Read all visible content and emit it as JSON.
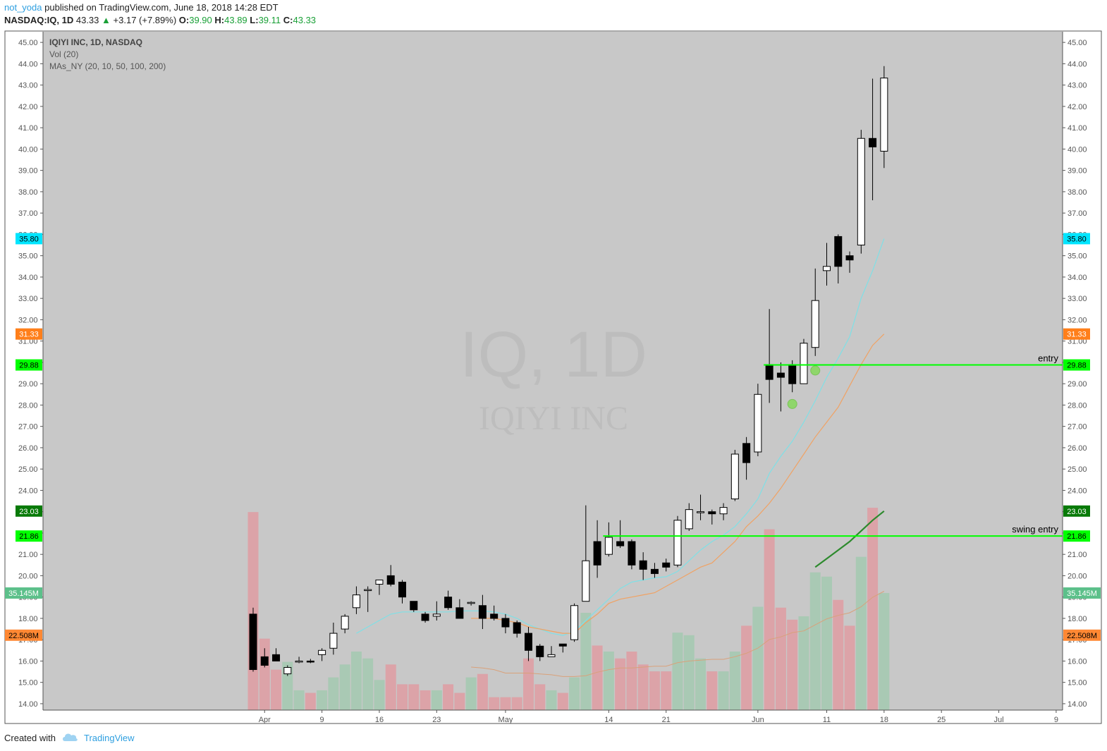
{
  "header": {
    "user": "not_yoda",
    "published_text": "published on TradingView.com, June 18, 2018 14:28 EDT",
    "symbol": "NASDAQ:IQ, 1D",
    "last": "43.33",
    "change": "+3.17 (+7.89%)",
    "o_label": "O:",
    "o_val": "39.90",
    "h_label": "H:",
    "h_val": "43.89",
    "l_label": "L:",
    "l_val": "39.11",
    "c_label": "C:",
    "c_val": "43.33"
  },
  "legend": {
    "line1": "IQIYI INC, 1D, NASDAQ",
    "line2": "Vol (20)",
    "line3": "MAs_NY (20, 10, 50, 100, 200)"
  },
  "watermark": {
    "big": "IQ, 1D",
    "small": "IQIYI INC"
  },
  "footer": {
    "created": "Created with",
    "brand": "TradingView"
  },
  "colors": {
    "bg": "#c8c8c8",
    "up": "#ffffff",
    "down": "#000000",
    "vol_up": "#a9c9b4",
    "vol_down": "#dca3a8",
    "ma10": "#7fe0e6",
    "ma20": "#f0a264",
    "ma50": "#2d8a2d",
    "hline": "#00ff00"
  },
  "chart_data": {
    "type": "candlestick",
    "y_range": [
      13.7,
      45.5
    ],
    "y_ticks": [
      "45.00",
      "44.00",
      "43.00",
      "42.00",
      "41.00",
      "40.00",
      "39.00",
      "38.00",
      "37.00",
      "36.00",
      "35.00",
      "34.00",
      "33.00",
      "32.00",
      "31.00",
      "30.00",
      "29.00",
      "28.00",
      "27.00",
      "26.00",
      "25.00",
      "24.00",
      "23.00",
      "22.00",
      "21.00",
      "20.00",
      "19.00",
      "18.00",
      "17.00",
      "16.00",
      "15.00",
      "14.00"
    ],
    "x_ticks": [
      {
        "label": "Apr",
        "slot": 1
      },
      {
        "label": "9",
        "slot": 6
      },
      {
        "label": "16",
        "slot": 11
      },
      {
        "label": "23",
        "slot": 16
      },
      {
        "label": "May",
        "slot": 22
      },
      {
        "label": "14",
        "slot": 31
      },
      {
        "label": "21",
        "slot": 36
      },
      {
        "label": "Jun",
        "slot": 44
      },
      {
        "label": "11",
        "slot": 50
      },
      {
        "label": "18",
        "slot": 55
      },
      {
        "label": "25",
        "slot": 60
      },
      {
        "label": "Jul",
        "slot": 65
      },
      {
        "label": "9",
        "slot": 70
      }
    ],
    "candles": [
      {
        "o": 18.2,
        "h": 18.5,
        "l": 15.5,
        "c": 15.6,
        "v": 23.0
      },
      {
        "o": 16.2,
        "h": 16.6,
        "l": 15.7,
        "c": 15.8,
        "v": 8.3
      },
      {
        "o": 16.3,
        "h": 16.6,
        "l": 16.0,
        "c": 16.0,
        "v": 4.7
      },
      {
        "o": 15.4,
        "h": 15.8,
        "l": 15.3,
        "c": 15.7,
        "v": 5.6
      },
      {
        "o": 16.0,
        "h": 16.2,
        "l": 15.9,
        "c": 16.0,
        "v": 2.3
      },
      {
        "o": 16.0,
        "h": 16.1,
        "l": 15.9,
        "c": 15.95,
        "v": 2.0
      },
      {
        "o": 16.3,
        "h": 16.6,
        "l": 16.0,
        "c": 16.5,
        "v": 2.3
      },
      {
        "o": 16.6,
        "h": 17.8,
        "l": 16.3,
        "c": 17.3,
        "v": 3.8
      },
      {
        "o": 17.5,
        "h": 18.2,
        "l": 17.3,
        "c": 18.1,
        "v": 5.3
      },
      {
        "o": 18.5,
        "h": 19.5,
        "l": 18.2,
        "c": 19.1,
        "v": 6.8
      },
      {
        "o": 19.3,
        "h": 19.5,
        "l": 18.3,
        "c": 19.35,
        "v": 6.0
      },
      {
        "o": 19.6,
        "h": 19.8,
        "l": 19.1,
        "c": 19.8,
        "v": 3.5
      },
      {
        "o": 20.0,
        "h": 20.5,
        "l": 19.5,
        "c": 19.6,
        "v": 5.3
      },
      {
        "o": 19.7,
        "h": 19.8,
        "l": 18.7,
        "c": 19.0,
        "v": 3.0
      },
      {
        "o": 18.8,
        "h": 18.8,
        "l": 18.3,
        "c": 18.4,
        "v": 3.0
      },
      {
        "o": 18.2,
        "h": 18.3,
        "l": 17.8,
        "c": 17.9,
        "v": 2.3
      },
      {
        "o": 18.1,
        "h": 18.8,
        "l": 17.9,
        "c": 18.2,
        "v": 2.3
      },
      {
        "o": 19.0,
        "h": 19.3,
        "l": 18.4,
        "c": 18.5,
        "v": 3.0
      },
      {
        "o": 18.5,
        "h": 18.9,
        "l": 18.0,
        "c": 18.0,
        "v": 2.0
      },
      {
        "o": 18.7,
        "h": 18.8,
        "l": 18.6,
        "c": 18.75,
        "v": 3.8
      },
      {
        "o": 18.6,
        "h": 19.1,
        "l": 17.5,
        "c": 18.0,
        "v": 4.2
      },
      {
        "o": 18.2,
        "h": 18.6,
        "l": 17.9,
        "c": 18.0,
        "v": 1.5
      },
      {
        "o": 18.0,
        "h": 18.2,
        "l": 17.3,
        "c": 17.6,
        "v": 1.5
      },
      {
        "o": 17.8,
        "h": 17.9,
        "l": 17.1,
        "c": 17.3,
        "v": 1.5
      },
      {
        "o": 17.3,
        "h": 17.6,
        "l": 16.0,
        "c": 16.5,
        "v": 6.0
      },
      {
        "o": 16.7,
        "h": 16.8,
        "l": 16.0,
        "c": 16.2,
        "v": 3.0
      },
      {
        "o": 16.2,
        "h": 16.7,
        "l": 16.2,
        "c": 16.3,
        "v": 2.3
      },
      {
        "o": 16.8,
        "h": 16.8,
        "l": 16.4,
        "c": 16.7,
        "v": 2.0
      },
      {
        "o": 17.0,
        "h": 18.7,
        "l": 16.9,
        "c": 18.6,
        "v": 3.8
      },
      {
        "o": 18.8,
        "h": 23.3,
        "l": 18.8,
        "c": 20.7,
        "v": 11.3
      },
      {
        "o": 21.6,
        "h": 22.6,
        "l": 19.9,
        "c": 20.5,
        "v": 7.5
      },
      {
        "o": 21.0,
        "h": 22.5,
        "l": 20.9,
        "c": 21.8,
        "v": 6.8
      },
      {
        "o": 21.6,
        "h": 22.6,
        "l": 21.3,
        "c": 21.4,
        "v": 6.0
      },
      {
        "o": 21.6,
        "h": 21.7,
        "l": 20.3,
        "c": 20.5,
        "v": 6.8
      },
      {
        "o": 20.7,
        "h": 21.1,
        "l": 19.8,
        "c": 20.3,
        "v": 5.3
      },
      {
        "o": 20.3,
        "h": 20.6,
        "l": 19.9,
        "c": 20.1,
        "v": 4.5
      },
      {
        "o": 20.6,
        "h": 20.8,
        "l": 20.2,
        "c": 20.4,
        "v": 4.5
      },
      {
        "o": 20.5,
        "h": 22.8,
        "l": 20.4,
        "c": 22.6,
        "v": 9.0
      },
      {
        "o": 22.2,
        "h": 23.4,
        "l": 22.1,
        "c": 23.1,
        "v": 8.7
      },
      {
        "o": 23.0,
        "h": 23.8,
        "l": 22.6,
        "c": 23.0,
        "v": 6.0
      },
      {
        "o": 23.0,
        "h": 23.1,
        "l": 22.4,
        "c": 22.9,
        "v": 4.5
      },
      {
        "o": 22.9,
        "h": 23.4,
        "l": 22.6,
        "c": 23.2,
        "v": 4.5
      },
      {
        "o": 23.6,
        "h": 25.9,
        "l": 23.5,
        "c": 25.7,
        "v": 6.8
      },
      {
        "o": 26.2,
        "h": 26.5,
        "l": 24.5,
        "c": 25.3,
        "v": 9.8
      },
      {
        "o": 25.8,
        "h": 29.0,
        "l": 25.6,
        "c": 28.5,
        "v": 12.0
      },
      {
        "o": 29.9,
        "h": 32.5,
        "l": 28.1,
        "c": 29.2,
        "v": 21.0
      },
      {
        "o": 29.5,
        "h": 30.0,
        "l": 27.7,
        "c": 29.3,
        "v": 11.9
      },
      {
        "o": 29.9,
        "h": 30.1,
        "l": 28.6,
        "c": 29.0,
        "v": 10.5
      },
      {
        "o": 29.0,
        "h": 31.1,
        "l": 29.0,
        "c": 30.9,
        "v": 10.9
      },
      {
        "o": 30.7,
        "h": 34.4,
        "l": 30.3,
        "c": 32.9,
        "v": 16.0
      },
      {
        "o": 34.3,
        "h": 35.6,
        "l": 33.6,
        "c": 34.5,
        "v": 15.5
      },
      {
        "o": 35.9,
        "h": 36.0,
        "l": 33.7,
        "c": 34.5,
        "v": 12.8
      },
      {
        "o": 35.0,
        "h": 35.2,
        "l": 34.2,
        "c": 34.8,
        "v": 9.8
      },
      {
        "o": 35.5,
        "h": 40.9,
        "l": 35.1,
        "c": 40.5,
        "v": 17.8
      },
      {
        "o": 40.5,
        "h": 43.3,
        "l": 37.6,
        "c": 40.1,
        "v": 23.5
      },
      {
        "o": 39.9,
        "h": 43.89,
        "l": 39.11,
        "c": 43.33,
        "v": 13.6
      }
    ],
    "ma10": [
      null,
      null,
      null,
      null,
      null,
      null,
      null,
      null,
      null,
      17.3,
      17.6,
      17.9,
      18.2,
      18.3,
      18.3,
      18.3,
      18.3,
      18.3,
      18.35,
      18.35,
      18.35,
      18.3,
      18.2,
      18.0,
      17.7,
      17.5,
      17.3,
      17.2,
      17.4,
      17.9,
      18.4,
      18.9,
      19.4,
      19.7,
      19.8,
      19.9,
      19.95,
      20.2,
      20.7,
      21.2,
      21.6,
      21.9,
      22.3,
      22.9,
      23.6,
      24.8,
      25.6,
      26.3,
      27.2,
      28.2,
      29.3,
      30.2,
      31.2,
      33.0,
      34.3,
      35.8
    ],
    "ma20": [
      null,
      null,
      null,
      null,
      null,
      null,
      null,
      null,
      null,
      null,
      null,
      null,
      null,
      null,
      null,
      null,
      null,
      null,
      null,
      18.0,
      18.0,
      18.0,
      17.9,
      17.8,
      17.6,
      17.5,
      17.4,
      17.3,
      17.3,
      17.8,
      18.2,
      18.7,
      18.9,
      19.0,
      19.1,
      19.2,
      19.5,
      19.8,
      20.1,
      20.4,
      20.6,
      21.1,
      21.6,
      22.3,
      22.8,
      23.4,
      24.1,
      24.9,
      25.7,
      26.5,
      27.2,
      27.9,
      28.9,
      29.9,
      30.8,
      31.33
    ],
    "ma50": [
      null,
      null,
      null,
      null,
      null,
      null,
      null,
      null,
      null,
      null,
      null,
      null,
      null,
      null,
      null,
      null,
      null,
      null,
      null,
      null,
      null,
      null,
      null,
      null,
      null,
      null,
      null,
      null,
      null,
      null,
      null,
      null,
      null,
      null,
      null,
      null,
      null,
      null,
      null,
      null,
      null,
      null,
      null,
      null,
      null,
      null,
      null,
      null,
      null,
      20.4,
      20.8,
      21.2,
      21.6,
      22.1,
      22.6,
      23.03
    ],
    "vol_ma": [
      null,
      null,
      null,
      null,
      null,
      null,
      null,
      null,
      null,
      null,
      null,
      null,
      null,
      null,
      null,
      null,
      null,
      null,
      null,
      5.0,
      4.9,
      4.7,
      4.3,
      4.3,
      4.3,
      4.2,
      4.1,
      3.9,
      3.9,
      4.0,
      4.4,
      4.7,
      4.9,
      4.9,
      5.0,
      5.1,
      5.1,
      5.5,
      5.7,
      5.8,
      5.9,
      5.9,
      6.2,
      6.6,
      7.2,
      8.2,
      8.5,
      9.0,
      9.2,
      9.9,
      10.6,
      11.0,
      11.3,
      12.0,
      13.1,
      13.8
    ],
    "vol_max": 26.0,
    "hlines": [
      {
        "price": 29.88,
        "label": "entry",
        "start_slot": 45
      },
      {
        "price": 21.86,
        "label": "swing entry",
        "start_slot": 31
      }
    ],
    "markers": [
      {
        "slot": 47,
        "price": 28.05
      },
      {
        "slot": 49,
        "price": 29.62
      }
    ],
    "price_tags": [
      {
        "text": "35.80",
        "price": 35.8,
        "bg": "#00e5ff",
        "fg": "#000000"
      },
      {
        "text": "31.33",
        "price": 31.33,
        "bg": "#ff7f1a",
        "fg": "#ffffff"
      },
      {
        "text": "29.88",
        "price": 29.88,
        "bg": "#00ff00",
        "fg": "#000000"
      },
      {
        "text": "23.03",
        "price": 23.03,
        "bg": "#087a08",
        "fg": "#ffffff"
      },
      {
        "text": "21.86",
        "price": 21.86,
        "bg": "#00ff00",
        "fg": "#000000"
      }
    ],
    "vol_tags": [
      {
        "text": "35.145M",
        "vol": 13.6,
        "bg": "#5cc08a",
        "fg": "#ffffff"
      },
      {
        "text": "22.508M",
        "vol": 8.7,
        "bg": "#ff8833",
        "fg": "#000000"
      }
    ]
  }
}
